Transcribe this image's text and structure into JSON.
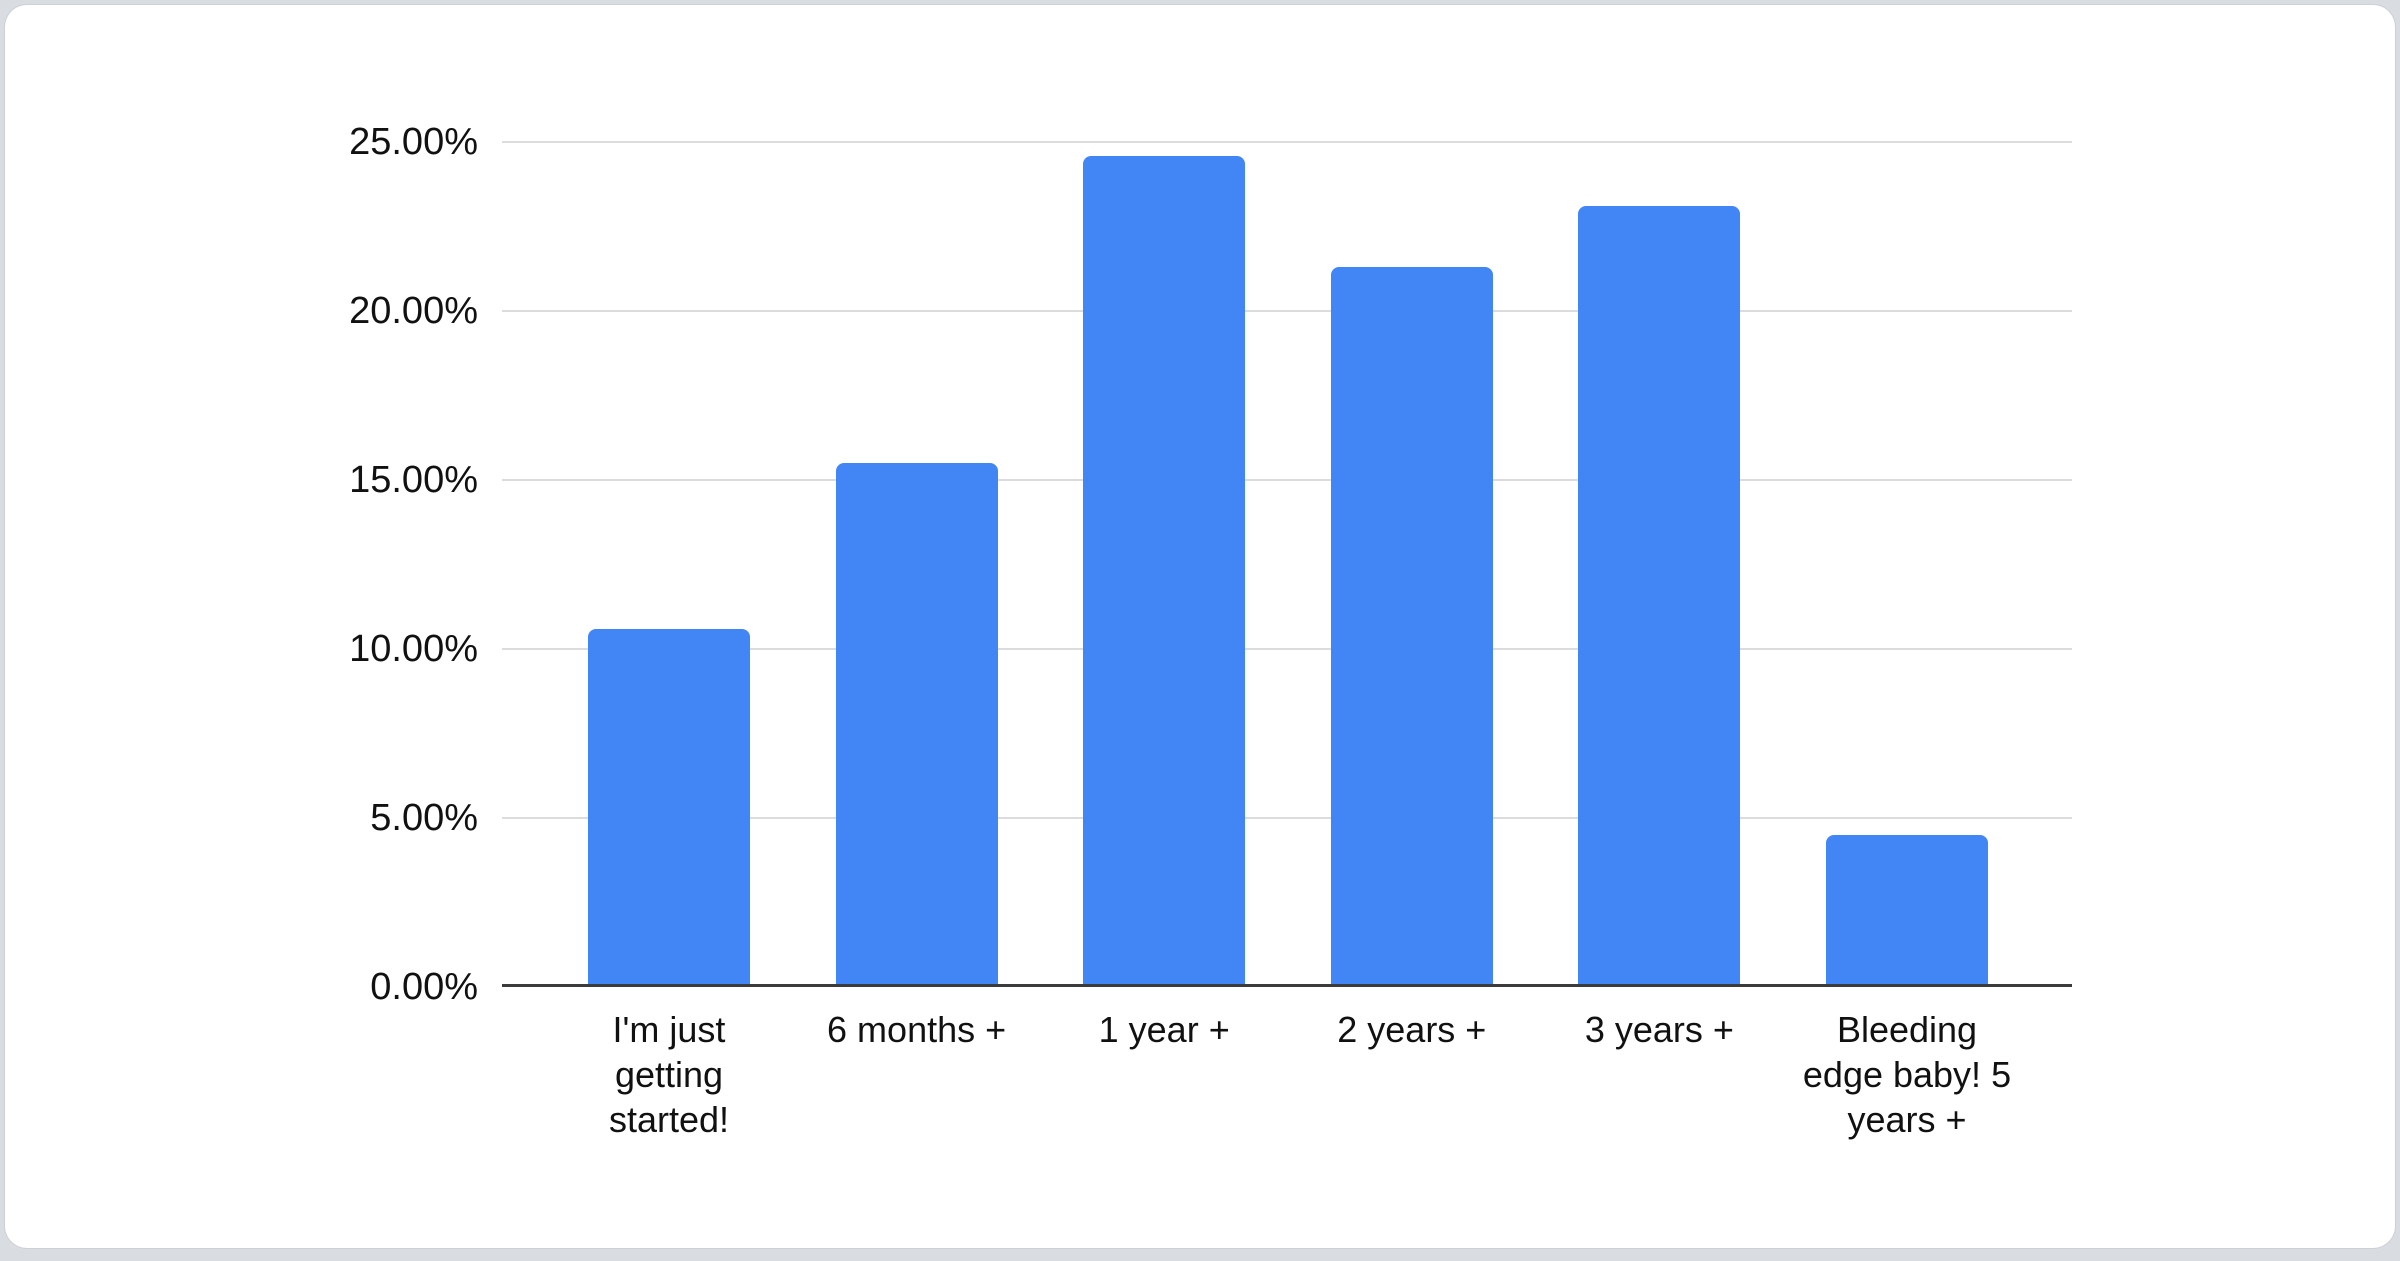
{
  "chart_data": {
    "type": "bar",
    "title": "",
    "xlabel": "",
    "ylabel": "",
    "categories": [
      "I'm just getting started!",
      "6 months +",
      "1 year +",
      "2 years +",
      "3 years +",
      "Bleeding edge baby! 5 years +"
    ],
    "values": [
      10.6,
      15.5,
      24.6,
      21.3,
      23.1,
      4.5
    ],
    "unit": "%",
    "y_ticks": [
      "0.00%",
      "5.00%",
      "10.00%",
      "15.00%",
      "20.00%",
      "25.00%"
    ],
    "ylim": [
      0,
      25
    ],
    "grid": true,
    "legend_position": "none",
    "colors": {
      "bar": "#4285f4",
      "gridline": "#dcdcdc",
      "axis_baseline": "#3c3c3c",
      "label_text": "#111111",
      "card_background": "#ffffff",
      "page_background": "#d9dde2"
    }
  }
}
